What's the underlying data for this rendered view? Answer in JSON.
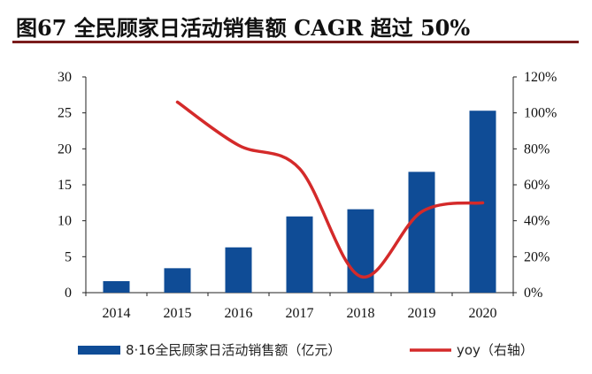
{
  "title": "图67  全民顾家日活动销售额 CAGR 超过 50%",
  "chart_data": {
    "type": "bar",
    "categories": [
      "2014",
      "2015",
      "2016",
      "2017",
      "2018",
      "2019",
      "2020"
    ],
    "series": [
      {
        "name": "8·16全民顾家日活动销售额（亿元）",
        "type": "bar",
        "axis": "left",
        "color": "#0f4c96",
        "values": [
          1.6,
          3.4,
          6.3,
          10.6,
          11.6,
          16.8,
          25.3
        ]
      },
      {
        "name": "yoy（右轴）",
        "type": "line",
        "axis": "right",
        "color": "#d42a2a",
        "values": [
          null,
          106,
          82,
          69,
          9,
          45,
          50
        ]
      }
    ],
    "ylim_left": [
      0,
      30
    ],
    "yticks_left": [
      "0",
      "5",
      "10",
      "15",
      "20",
      "25",
      "30"
    ],
    "ylim_right": [
      0,
      120
    ],
    "yticks_right": [
      "0%",
      "20%",
      "40%",
      "60%",
      "80%",
      "100%",
      "120%"
    ],
    "legend_position": "bottom",
    "grid": false
  }
}
